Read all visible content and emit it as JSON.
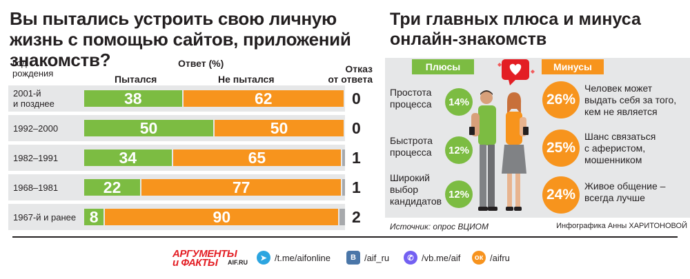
{
  "left": {
    "title": "Вы пытались устроить свою личную жизнь с помощью сайтов, приложений знакомств?",
    "header_year": "Год\nрождения",
    "header_answer": "Ответ (%)",
    "header_tried": "Пытался",
    "header_not_tried": "Не пытался",
    "header_refused": "Отказ\nот ответа"
  },
  "chart_data": {
    "type": "bar",
    "stacked": true,
    "orientation": "horizontal",
    "title": "Вы пытались устроить свою личную жизнь с помощью сайтов, приложений знакомств?",
    "categories": [
      "2001-й\nи позднее",
      "1992–2000",
      "1982–1991",
      "1968–1981",
      "1967-й и ранее"
    ],
    "series": [
      {
        "name": "Пытался",
        "color": "#7cbc42",
        "values": [
          38,
          50,
          34,
          22,
          8
        ]
      },
      {
        "name": "Не пытался",
        "color": "#f7941d",
        "values": [
          62,
          50,
          65,
          77,
          90
        ]
      },
      {
        "name": "Отказ от ответа",
        "color": "#a7a9ac",
        "values": [
          0,
          0,
          1,
          1,
          2
        ]
      }
    ],
    "unit": "%"
  },
  "right": {
    "title": "Три главных плюса и минуса онлайн-знакомств",
    "plus_label": "Плюсы",
    "minus_label": "Минусы",
    "pros": [
      {
        "label": "Простота\nпроцесса",
        "value": "14%"
      },
      {
        "label": "Быстрота\nпроцесса",
        "value": "12%"
      },
      {
        "label": "Широкий\nвыбор\nкандидатов",
        "value": "12%"
      }
    ],
    "cons": [
      {
        "label": "Человек может\nвыдать себя за того,\nкем не является",
        "value": "26%"
      },
      {
        "label": "Шанс связаться\nс аферистом,\nмошенником",
        "value": "25%"
      },
      {
        "label": "Живое общение –\nвсегда лучше",
        "value": "24%"
      }
    ],
    "source": "Источник: опрос ВЦИОМ",
    "credit": "Инфографика Анны ХАРИТОНОВОЙ",
    "illustration_icons": [
      "heart-speech-bubble-icon",
      "couple-with-phones-icon"
    ]
  },
  "footer": {
    "logo_line1": "АРГУМЕНТЫ",
    "logo_line2": "и ФАКТЫ",
    "logo_site": "AIF.RU",
    "links": [
      {
        "icon": "telegram-icon",
        "text": "/t.me/aifonline",
        "color": "#2ca5e0"
      },
      {
        "icon": "vk-icon",
        "text": "/aif_ru",
        "color": "#4a76a8"
      },
      {
        "icon": "viber-icon",
        "text": "/vb.me/aif",
        "color": "#7360f2"
      },
      {
        "icon": "odnoklassniki-icon",
        "text": "/aifru",
        "color": "#f7931e"
      }
    ]
  }
}
